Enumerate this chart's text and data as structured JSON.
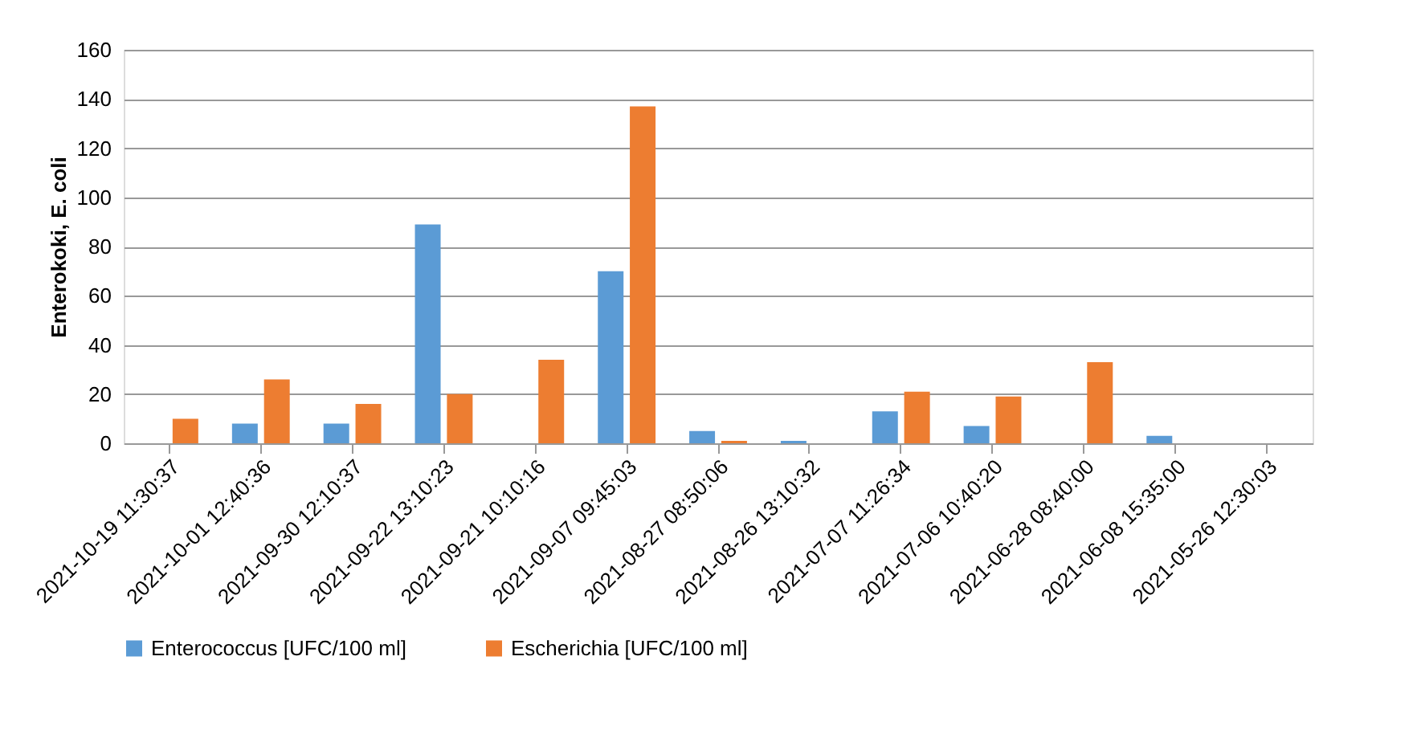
{
  "chart_data": {
    "type": "bar",
    "ylabel": "Enterokoki, E. coli",
    "categories": [
      "2021-10-19 11:30:37",
      "2021-10-01 12:40:36",
      "2021-09-30 12:10:37",
      "2021-09-22 13:10:23",
      "2021-09-21 10:10:16",
      "2021-09-07 09:45:03",
      "2021-08-27 08:50:06",
      "2021-08-26 13:10:32",
      "2021-07-07 11:26:34",
      "2021-07-06 10:40:20",
      "2021-06-28 08:40:00",
      "2021-06-08 15:35:00",
      "2021-05-26 12:30:03"
    ],
    "series": [
      {
        "name": "Enterococcus   [UFC/100 ml]",
        "color": "#5b9bd5",
        "values": [
          0,
          8,
          8,
          89,
          0,
          70,
          5,
          1,
          13,
          7,
          0,
          3,
          0
        ]
      },
      {
        "name": "Escherichia   [UFC/100 ml]",
        "color": "#ed7d31",
        "values": [
          10,
          26,
          16,
          20,
          34,
          137,
          1,
          0,
          21,
          19,
          33,
          0,
          0
        ]
      }
    ],
    "ylim": [
      0,
      160
    ],
    "yticks": [
      0,
      20,
      40,
      60,
      80,
      100,
      120,
      140,
      160
    ],
    "grid": "y",
    "legend": "bottom"
  }
}
